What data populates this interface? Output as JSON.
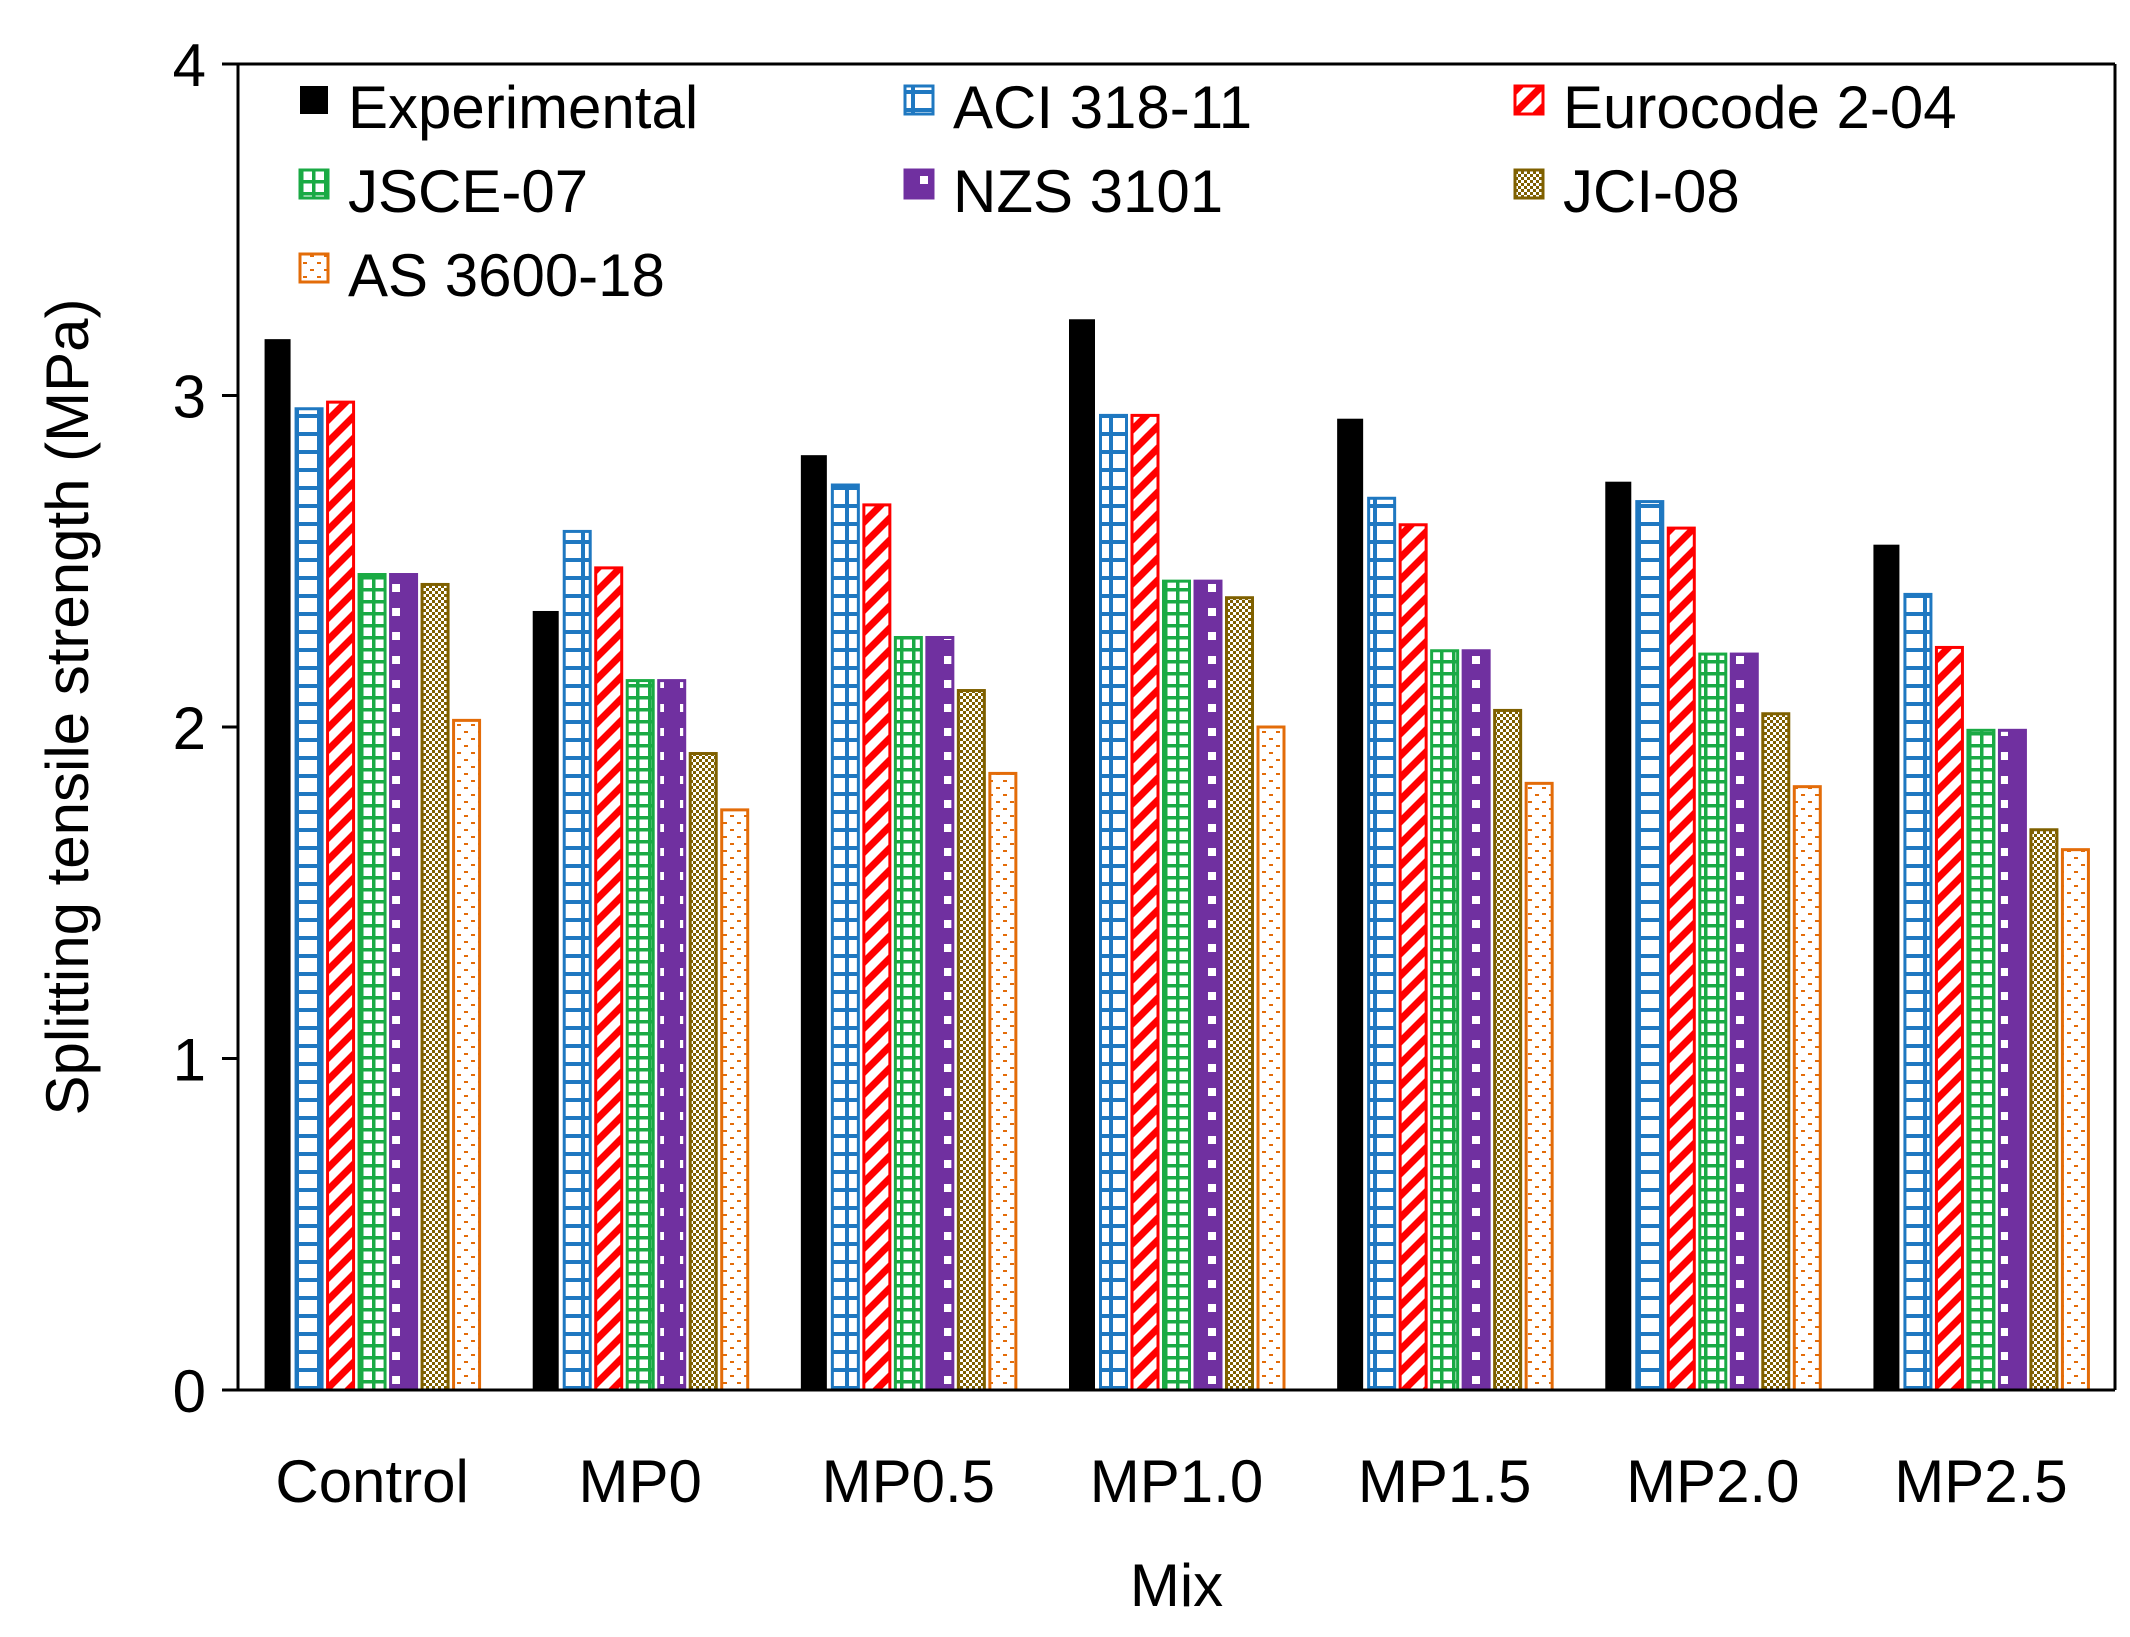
{
  "chart_data": {
    "type": "bar",
    "title": "",
    "xlabel": "Mix",
    "ylabel": "Splitting tensile strength (MPa)",
    "ylim": [
      0,
      4
    ],
    "yticks": [
      0,
      1,
      2,
      3,
      4
    ],
    "grid": false,
    "legend_position": "top-left, inside plot, 3 columns",
    "categories": [
      "Control",
      "MP0",
      "MP0.5",
      "MP1.0",
      "MP1.5",
      "MP2.0",
      "MP2.5"
    ],
    "series": [
      {
        "name": "Experimental",
        "color": "#000000",
        "pattern": "solid",
        "values": [
          3.17,
          2.35,
          2.82,
          3.23,
          2.93,
          2.74,
          2.55
        ]
      },
      {
        "name": "ACI 318-11",
        "color": "#1f78c1",
        "pattern": "hbricks",
        "values": [
          2.96,
          2.59,
          2.73,
          2.94,
          2.69,
          2.68,
          2.4
        ]
      },
      {
        "name": "Eurocode 2-04",
        "color": "#ff0000",
        "pattern": "diagonal",
        "values": [
          2.98,
          2.48,
          2.67,
          2.94,
          2.61,
          2.6,
          2.24
        ]
      },
      {
        "name": "JSCE-07",
        "color": "#1aaa44",
        "pattern": "grid",
        "values": [
          2.46,
          2.14,
          2.27,
          2.44,
          2.23,
          2.22,
          1.99
        ]
      },
      {
        "name": "NZS 3101",
        "color": "#7030a0",
        "pattern": "squares",
        "values": [
          2.46,
          2.14,
          2.27,
          2.44,
          2.23,
          2.22,
          1.99
        ]
      },
      {
        "name": "JCI-08",
        "color": "#7f6000",
        "pattern": "checker",
        "values": [
          2.43,
          1.92,
          2.11,
          2.39,
          2.05,
          2.04,
          1.69
        ]
      },
      {
        "name": "AS 3600-18",
        "color": "#e36c09",
        "pattern": "dashes",
        "values": [
          2.02,
          1.75,
          1.86,
          2.0,
          1.83,
          1.82,
          1.63
        ]
      }
    ]
  }
}
